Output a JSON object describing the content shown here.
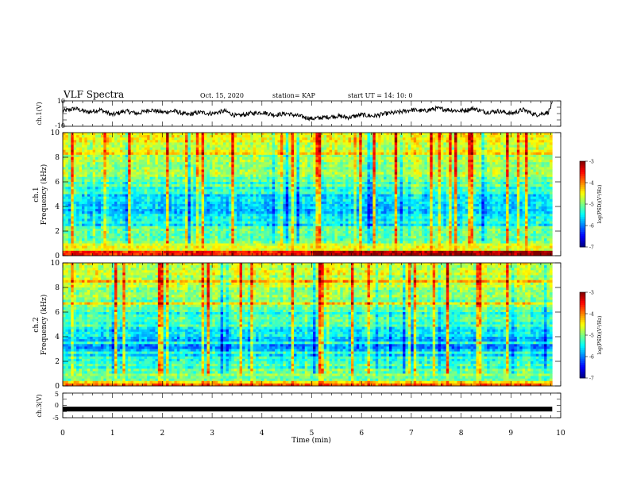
{
  "header": {
    "title": "VLF Spectra",
    "date": "Oct. 15, 2020",
    "station": "station= KAP",
    "start": "start  UT =   14: 10: 0"
  },
  "chart_data": [
    {
      "type": "line",
      "panel": "ch1-waveform",
      "ylabel": "ch.1(V)",
      "ylim": [
        -10,
        10
      ],
      "yticks": [
        "10",
        "-10"
      ],
      "xlim": [
        0,
        10
      ],
      "x_end_minutes": 9.83,
      "series": [
        {
          "x": [
            0,
            0.25,
            0.5,
            0.75,
            1.0,
            1.25,
            1.5,
            1.75,
            2.0,
            2.25,
            2.5,
            2.75,
            3.0,
            3.25,
            3.5,
            3.75,
            4.0,
            4.25,
            4.5,
            4.75,
            5.0,
            5.25,
            5.5,
            5.75,
            6.0,
            6.25,
            6.5,
            6.75,
            7.0,
            7.25,
            7.5,
            7.75,
            8.0,
            8.25,
            8.5,
            8.75,
            9.0,
            9.25,
            9.5,
            9.75,
            9.83
          ],
          "values": [
            2,
            4,
            1,
            3,
            -1,
            2,
            0,
            3,
            1,
            2,
            -1,
            1,
            0,
            2,
            -2,
            0,
            1,
            -1,
            0,
            -2,
            -4,
            -3,
            -2,
            -3,
            -1,
            -2,
            0,
            1,
            3,
            2,
            4,
            3,
            2,
            4,
            1,
            2,
            0,
            3,
            -1,
            1,
            8
          ]
        }
      ]
    },
    {
      "type": "heatmap",
      "panel": "ch1-spectrogram",
      "ylabel": "ch.1\nFrequency (kHz)",
      "ylim": [
        0,
        10
      ],
      "yticks": [
        "0",
        "2",
        "4",
        "6",
        "8",
        "10"
      ],
      "xlim": [
        0,
        10
      ],
      "x_end_minutes": 9.83,
      "colorbar": {
        "label": "log(PSD)(V²/Hz)",
        "ticks": [
          "-3",
          "-4",
          "-5",
          "-6",
          "-7"
        ],
        "range": [
          -7,
          -3
        ]
      },
      "mean_log_psd_by_freq": {
        "freq_khz": [
          0.25,
          0.75,
          1.25,
          1.75,
          2.25,
          2.75,
          3.25,
          3.75,
          4.25,
          4.75,
          5.25,
          5.75,
          6.25,
          6.75,
          7.25,
          7.75,
          8.25,
          8.75,
          9.25,
          9.75
        ],
        "log_psd": [
          -3.6,
          -4.6,
          -5.0,
          -5.1,
          -5.2,
          -5.5,
          -5.6,
          -5.7,
          -5.6,
          -5.6,
          -5.3,
          -5.4,
          -5.0,
          -4.9,
          -4.9,
          -4.8,
          -4.8,
          -4.7,
          -4.6,
          -4.6
        ]
      }
    },
    {
      "type": "heatmap",
      "panel": "ch2-spectrogram",
      "ylabel": "ch.2\nFrequency (kHz)",
      "ylim": [
        0,
        10
      ],
      "yticks": [
        "0",
        "2",
        "4",
        "6",
        "8",
        "10"
      ],
      "xlim": [
        0,
        10
      ],
      "x_end_minutes": 9.83,
      "colorbar": {
        "label": "log(PSD)(V²/Hz)",
        "ticks": [
          "-3",
          "-4",
          "-5",
          "-6",
          "-7"
        ],
        "range": [
          -7,
          -3
        ]
      },
      "mean_log_psd_by_freq": {
        "freq_khz": [
          0.25,
          0.75,
          1.25,
          1.75,
          2.25,
          2.75,
          3.25,
          3.75,
          4.25,
          4.75,
          5.25,
          5.75,
          6.25,
          6.75,
          7.25,
          7.75,
          8.25,
          8.75,
          9.25,
          9.75
        ],
        "log_psd": [
          -4.4,
          -5.0,
          -5.1,
          -5.3,
          -5.4,
          -5.7,
          -5.9,
          -5.8,
          -5.6,
          -5.5,
          -5.3,
          -5.3,
          -5.1,
          -5.0,
          -4.9,
          -4.9,
          -4.8,
          -4.8,
          -4.7,
          -4.7
        ]
      }
    },
    {
      "type": "line",
      "panel": "ch3-waveform",
      "ylabel": "ch.3(V)",
      "ylim": [
        -5,
        5
      ],
      "yticks": [
        "5",
        "0",
        "-5"
      ],
      "xlim": [
        0,
        10
      ],
      "x_end_minutes": 9.83,
      "series": [
        {
          "x": [
            0,
            9.83
          ],
          "values": [
            -1.5,
            -1.5
          ]
        }
      ]
    }
  ],
  "xaxis": {
    "label": "Time (min)",
    "ticks": [
      "0",
      "1",
      "2",
      "3",
      "4",
      "5",
      "6",
      "7",
      "8",
      "9",
      "10"
    ]
  },
  "colors": {
    "line": "#000000",
    "colormap": [
      "#000080",
      "#0000ff",
      "#00ffff",
      "#00ff00",
      "#ffff00",
      "#ff0000",
      "#800000"
    ]
  }
}
